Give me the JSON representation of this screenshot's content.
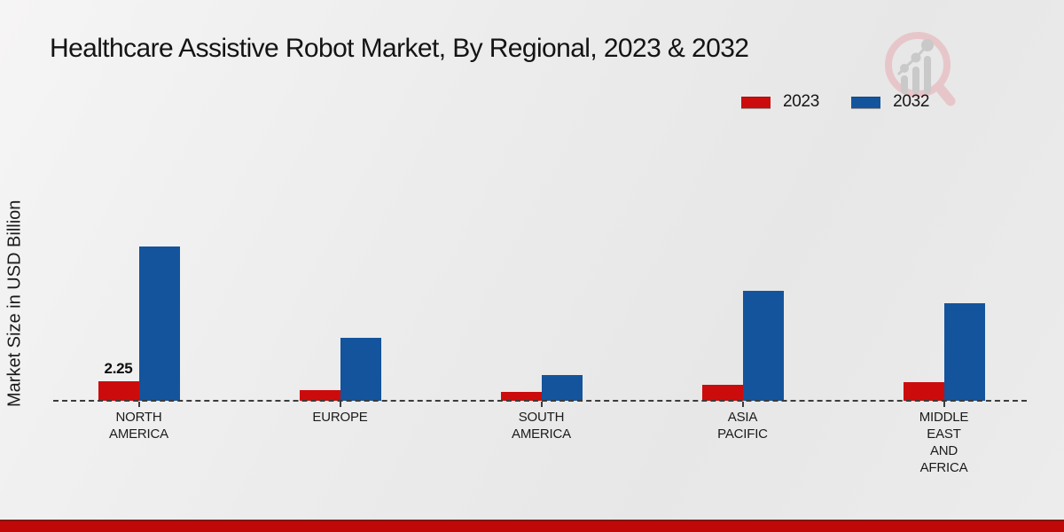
{
  "page": {
    "title": "Healthcare Assistive Robot Market, By Regional, 2023 & 2032"
  },
  "legend": [
    {
      "label": "2023",
      "color": "#cc0c0c"
    },
    {
      "label": "2032",
      "color": "#14549c"
    }
  ],
  "colors": {
    "series_2023": "#cc0c0c",
    "series_2032": "#14549c",
    "axis_dash": "#3c3c3c",
    "footer_red": "#c00808",
    "background": "#ebebeb"
  },
  "logo": {
    "icon": "magnifier-bar-chart-logo"
  },
  "chart_data": {
    "type": "bar",
    "title": "Healthcare Assistive Robot Market, By Regional, 2023 & 2032",
    "xlabel": "",
    "ylabel": "Market Size in USD Billion",
    "categories": [
      "NORTH AMERICA",
      "EUROPE",
      "SOUTH AMERICA",
      "ASIA PACIFIC",
      "MIDDLE EAST AND AFRICA"
    ],
    "category_label_lines": [
      [
        "NORTH",
        "AMERICA"
      ],
      [
        "EUROPE"
      ],
      [
        "SOUTH",
        "AMERICA"
      ],
      [
        "ASIA",
        "PACIFIC"
      ],
      [
        "MIDDLE",
        "EAST",
        "AND",
        "AFRICA"
      ]
    ],
    "series": [
      {
        "name": "2023",
        "color": "#cc0c0c",
        "values": [
          2.25,
          1.2,
          1.0,
          1.8,
          2.1
        ]
      },
      {
        "name": "2032",
        "color": "#14549c",
        "values": [
          17.8,
          7.3,
          3.0,
          12.7,
          11.2
        ]
      }
    ],
    "bar_value_labels": [
      {
        "category_index": 0,
        "series_index": 0,
        "text": "2.25"
      }
    ],
    "ylim": [
      0,
      20
    ],
    "grid": false,
    "baseline_style": "dashed",
    "legend_position": "top-right"
  }
}
